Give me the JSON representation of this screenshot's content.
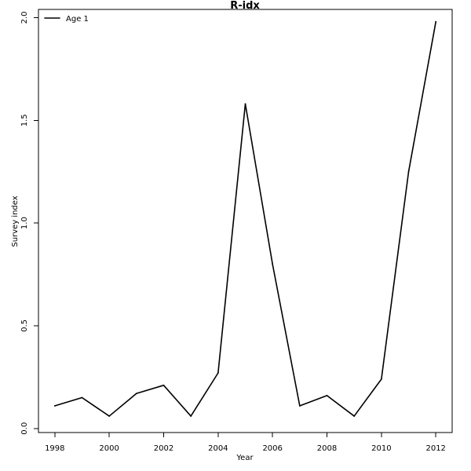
{
  "chart_data": {
    "type": "line",
    "title": "R-idx",
    "xlabel": "Year",
    "ylabel": "Survey index",
    "xlim": [
      1997.4,
      2012.6
    ],
    "ylim": [
      -0.02,
      2.04
    ],
    "x_ticks": [
      1998,
      2000,
      2002,
      2004,
      2006,
      2008,
      2010,
      2012
    ],
    "x_tick_labels": [
      "1998",
      "2000",
      "2002",
      "2004",
      "2006",
      "2008",
      "2010",
      "2012"
    ],
    "y_ticks": [
      0.0,
      0.5,
      1.0,
      1.5,
      2.0
    ],
    "y_tick_labels": [
      "0.0",
      "0.5",
      "1.0",
      "1.5",
      "2.0"
    ],
    "grid": false,
    "legend": {
      "position": "top-left",
      "entries": [
        "Age 1"
      ]
    },
    "series": [
      {
        "name": "Age 1",
        "color": "#000000",
        "x": [
          1998,
          1999,
          2000,
          2001,
          2002,
          2003,
          2004,
          2005,
          2006,
          2007,
          2008,
          2009,
          2010,
          2011,
          2012
        ],
        "y": [
          0.11,
          0.15,
          0.06,
          0.17,
          0.21,
          0.06,
          0.27,
          1.58,
          0.8,
          0.11,
          0.16,
          0.06,
          0.24,
          1.25,
          1.98
        ]
      }
    ]
  }
}
